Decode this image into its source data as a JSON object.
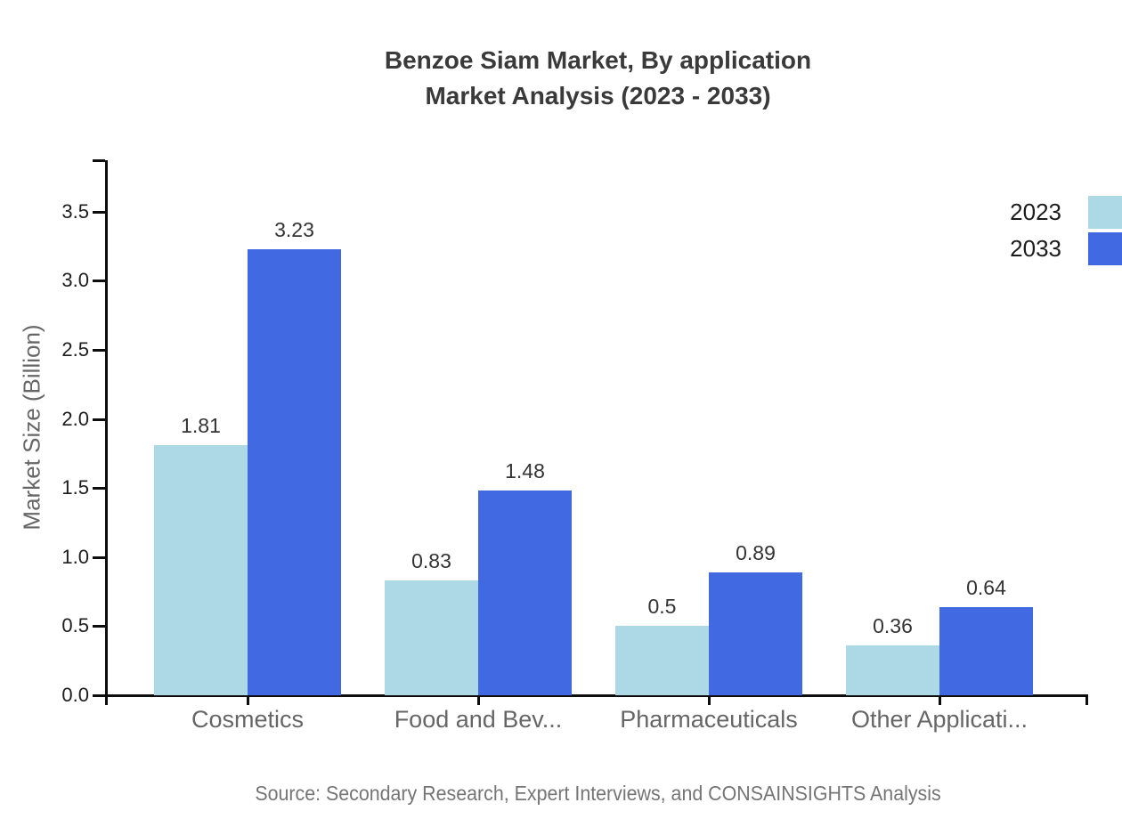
{
  "chart_data": {
    "type": "bar",
    "title_lines": [
      "Benzoe Siam Market, By application",
      "Market Analysis (2023 - 2033)"
    ],
    "categories": [
      "Cosmetics",
      "Food and Bev...",
      "Pharmaceuticals",
      "Other Applicati..."
    ],
    "series": [
      {
        "name": "2023",
        "color": "#add8e6",
        "values": [
          1.81,
          0.83,
          0.5,
          0.36
        ]
      },
      {
        "name": "2033",
        "color": "#4169e1",
        "values": [
          3.23,
          1.48,
          0.89,
          0.64
        ]
      }
    ],
    "xlabel": "",
    "ylabel": "Market Size (Billion)",
    "ylim": [
      0,
      3.875
    ],
    "yticks": [
      "0.0",
      "0.5",
      "1.0",
      "1.5",
      "2.0",
      "2.5",
      "3.0",
      "3.5"
    ],
    "grid": false,
    "legend_position": "top-right",
    "source": "Source: Secondary Research, Expert Interviews, and CONSAINSIGHTS Analysis"
  },
  "colors": {
    "background": "#ffffff",
    "title": "#3a3a3a",
    "axis_line": "#0d0d0d",
    "tick_label": "#1c1c1c",
    "value_label": "#333333",
    "category_label": "#666666",
    "axis_title": "#666666",
    "legend_label": "#1c1c1c",
    "source": "#757575"
  }
}
